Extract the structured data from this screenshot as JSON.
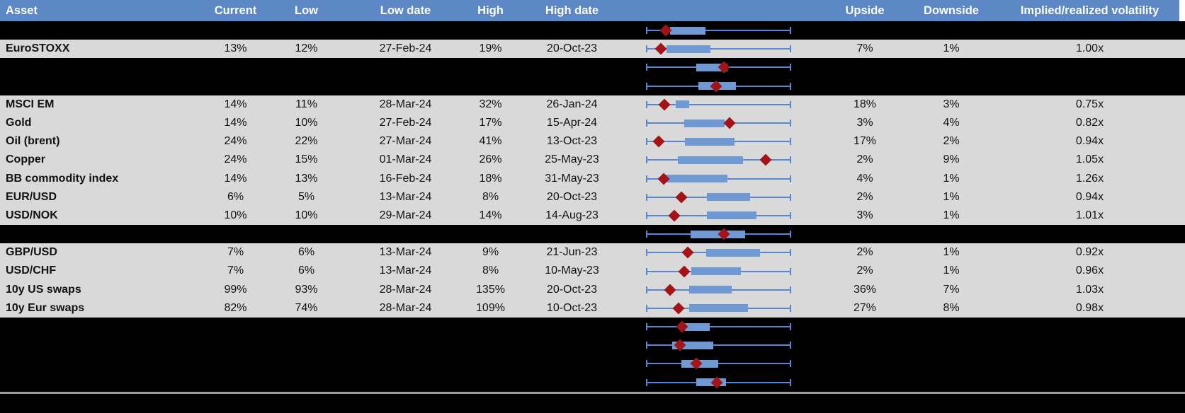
{
  "columns": [
    {
      "key": "asset",
      "label": "Asset"
    },
    {
      "key": "current",
      "label": "Current"
    },
    {
      "key": "low",
      "label": "Low"
    },
    {
      "key": "low_date",
      "label": "Low date"
    },
    {
      "key": "high",
      "label": "High"
    },
    {
      "key": "high_date",
      "label": "High date"
    },
    {
      "key": "chart",
      "label": ""
    },
    {
      "key": "upside",
      "label": "Upside"
    },
    {
      "key": "downside",
      "label": "Downside"
    },
    {
      "key": "ratio",
      "label": "Implied/realized volatility"
    }
  ],
  "colors": {
    "header_blue": "#5C88C5",
    "row_gray": "#D9D9D9",
    "masked_black": "#000000",
    "box_blue": "#6E99D3",
    "whisker_blue": "#5787CF",
    "marker_red": "#A31419",
    "separator_gray": "#9E9E9E"
  },
  "chart_meta": {
    "type": "boxplot-sparkline-per-row",
    "note": "box and point positions are fractions of the min-max whisker span (whiskers always span 0 to 1)"
  },
  "rows": [
    {
      "type": "hidden",
      "plot": {
        "box_lo": 0.166,
        "box_hi": 0.41,
        "point": 0.135
      }
    },
    {
      "type": "data",
      "asset": "EuroSTOXX",
      "current": "13%",
      "low": "12%",
      "low_date": "27-Feb-24",
      "high": "19%",
      "high_date": "20-Oct-23",
      "upside": "7%",
      "downside": "1%",
      "ratio": "1.00x",
      "plot": {
        "box_lo": 0.14,
        "box_hi": 0.445,
        "point": 0.1
      }
    },
    {
      "type": "hidden",
      "plot": {
        "box_lo": 0.346,
        "box_hi": 0.56,
        "point": 0.535
      }
    },
    {
      "type": "hidden",
      "plot": {
        "box_lo": 0.36,
        "box_hi": 0.62,
        "point": 0.483
      }
    },
    {
      "type": "data",
      "asset": "MSCI EM",
      "current": "14%",
      "low": "11%",
      "low_date": "28-Mar-24",
      "high": "32%",
      "high_date": "26-Jan-24",
      "upside": "18%",
      "downside": "3%",
      "ratio": "0.75x",
      "plot": {
        "box_lo": 0.206,
        "box_hi": 0.299,
        "point": 0.127
      }
    },
    {
      "type": "data",
      "asset": "Gold",
      "current": "14%",
      "low": "10%",
      "low_date": "27-Feb-24",
      "high": "17%",
      "high_date": "15-Apr-24",
      "upside": "3%",
      "downside": "4%",
      "ratio": "0.82x",
      "plot": {
        "box_lo": 0.262,
        "box_hi": 0.54,
        "point": 0.576
      }
    },
    {
      "type": "data",
      "asset": "Oil (brent)",
      "current": "24%",
      "low": "22%",
      "low_date": "27-Mar-24",
      "high": "41%",
      "high_date": "13-Oct-23",
      "upside": "17%",
      "downside": "2%",
      "ratio": "0.94x",
      "plot": {
        "box_lo": 0.268,
        "box_hi": 0.611,
        "point": 0.088
      }
    },
    {
      "type": "data",
      "asset": "Copper",
      "current": "24%",
      "low": "15%",
      "low_date": "01-Mar-24",
      "high": "26%",
      "high_date": "25-May-23",
      "upside": "2%",
      "downside": "9%",
      "ratio": "1.05x",
      "plot": {
        "box_lo": 0.221,
        "box_hi": 0.667,
        "point": 0.823
      }
    },
    {
      "type": "data",
      "asset": "BB commodity index",
      "current": "14%",
      "low": "13%",
      "low_date": "16-Feb-24",
      "high": "18%",
      "high_date": "31-May-23",
      "upside": "4%",
      "downside": "1%",
      "ratio": "1.26x",
      "plot": {
        "box_lo": 0.129,
        "box_hi": 0.56,
        "point": 0.121
      }
    },
    {
      "type": "data",
      "asset": "EUR/USD",
      "current": "6%",
      "low": "5%",
      "low_date": "13-Mar-24",
      "high": "8%",
      "high_date": "20-Oct-23",
      "upside": "2%",
      "downside": "1%",
      "ratio": "0.94x",
      "plot": {
        "box_lo": 0.421,
        "box_hi": 0.718,
        "point": 0.245
      }
    },
    {
      "type": "data",
      "asset": "USD/NOK",
      "current": "10%",
      "low": "10%",
      "low_date": "29-Mar-24",
      "high": "14%",
      "high_date": "14-Aug-23",
      "upside": "3%",
      "downside": "1%",
      "ratio": "1.01x",
      "plot": {
        "box_lo": 0.42,
        "box_hi": 0.762,
        "point": 0.194
      }
    },
    {
      "type": "hidden",
      "plot": {
        "box_lo": 0.305,
        "box_hi": 0.681,
        "point": 0.537
      }
    },
    {
      "type": "data",
      "asset": "GBP/USD",
      "current": "7%",
      "low": "6%",
      "low_date": "13-Mar-24",
      "high": "9%",
      "high_date": "21-Jun-23",
      "upside": "2%",
      "downside": "1%",
      "ratio": "0.92x",
      "plot": {
        "box_lo": 0.413,
        "box_hi": 0.787,
        "point": 0.286
      }
    },
    {
      "type": "data",
      "asset": "USD/CHF",
      "current": "7%",
      "low": "6%",
      "low_date": "13-Mar-24",
      "high": "8%",
      "high_date": "10-May-23",
      "upside": "2%",
      "downside": "1%",
      "ratio": "0.96x",
      "plot": {
        "box_lo": 0.312,
        "box_hi": 0.654,
        "point": 0.263
      }
    },
    {
      "type": "data",
      "asset": "10y US swaps",
      "current": "99%",
      "low": "93%",
      "low_date": "28-Mar-24",
      "high": "135%",
      "high_date": "20-Oct-23",
      "upside": "36%",
      "downside": "7%",
      "ratio": "1.03x",
      "plot": {
        "box_lo": 0.296,
        "box_hi": 0.592,
        "point": 0.164
      }
    },
    {
      "type": "data",
      "asset": "10y Eur swaps",
      "current": "82%",
      "low": "74%",
      "low_date": "28-Mar-24",
      "high": "109%",
      "high_date": "10-Oct-23",
      "upside": "27%",
      "downside": "8%",
      "ratio": "0.98x",
      "plot": {
        "box_lo": 0.296,
        "box_hi": 0.702,
        "point": 0.222
      }
    },
    {
      "type": "hidden",
      "plot": {
        "box_lo": 0.27,
        "box_hi": 0.44,
        "point": 0.25
      }
    },
    {
      "type": "hidden",
      "plot": {
        "box_lo": 0.18,
        "box_hi": 0.463,
        "point": 0.235
      }
    },
    {
      "type": "hidden",
      "plot": {
        "box_lo": 0.244,
        "box_hi": 0.498,
        "point": 0.345
      }
    },
    {
      "type": "hidden",
      "plot": {
        "box_lo": 0.346,
        "box_hi": 0.551,
        "point": 0.489
      }
    }
  ]
}
